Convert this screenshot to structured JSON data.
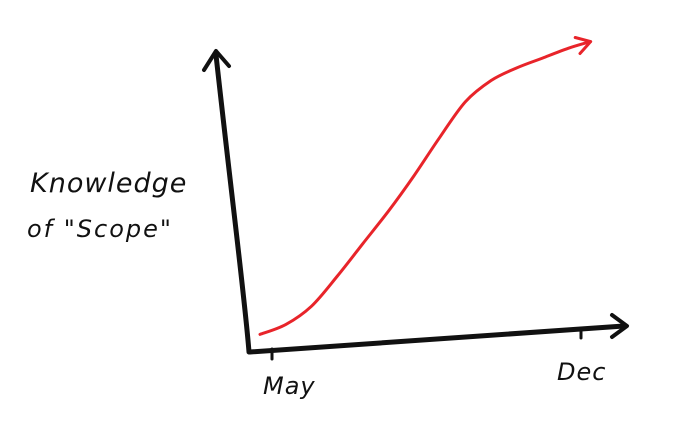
{
  "chart_data": {
    "type": "line",
    "title": "",
    "xlabel": "",
    "ylabel_lines": [
      "Knowledge",
      "of \"Scope\""
    ],
    "x_ticks": [
      "May",
      "Dec"
    ],
    "x_tick_positions": [
      0,
      1
    ],
    "xlim": [
      0,
      1.06
    ],
    "ylim": [
      0,
      1.0
    ],
    "grid": false,
    "legend": "none",
    "series": [
      {
        "color": "#e8242a",
        "x": [
          0.0,
          0.08,
          0.16,
          0.24,
          0.32,
          0.4,
          0.48,
          0.56,
          0.64,
          0.72,
          0.8,
          0.88,
          0.96,
          1.03
        ],
        "y": [
          0.03,
          0.06,
          0.12,
          0.22,
          0.33,
          0.44,
          0.56,
          0.69,
          0.81,
          0.88,
          0.92,
          0.95,
          0.98,
          1.0
        ]
      }
    ],
    "axis_color": "#111111"
  }
}
